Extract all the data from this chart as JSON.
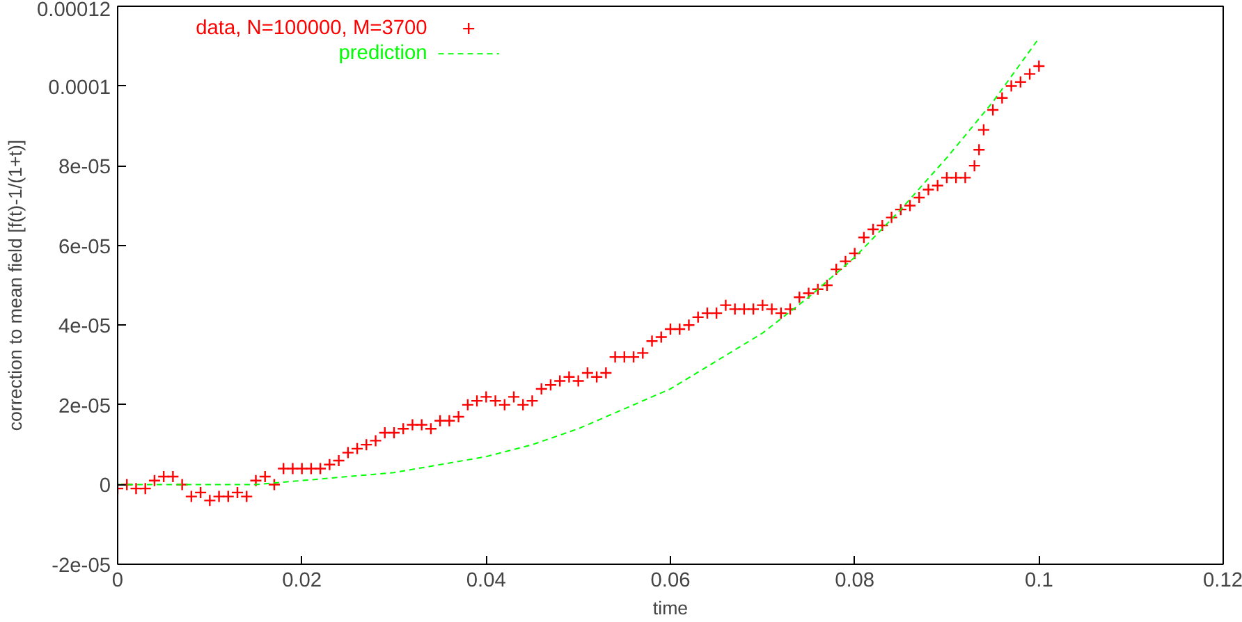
{
  "chart_data": {
    "type": "scatter",
    "xlabel": "time",
    "ylabel": "correction to mean field [f(t)-1/(1+t)]",
    "xlim": [
      0,
      0.12
    ],
    "xticks": [
      0,
      0.02,
      0.04,
      0.06,
      0.08,
      0.1,
      0.12
    ],
    "ylim": [
      -2e-05,
      0.00012
    ],
    "yticks": [
      {
        "value": -2e-05,
        "label": "-2e-05"
      },
      0,
      {
        "value": 2e-05,
        "label": "2e-05"
      },
      {
        "value": 4e-05,
        "label": "4e-05"
      },
      {
        "value": 6e-05,
        "label": "6e-05"
      },
      {
        "value": 8e-05,
        "label": "8e-05"
      },
      {
        "value": 0.0001,
        "label": "0.0001"
      },
      {
        "value": 0.00012,
        "label": "0.00012"
      }
    ],
    "grid": false,
    "legend": "top",
    "series": [
      {
        "name": "data, N=100000, M=3700",
        "marker": "cross",
        "color": "#ff0000",
        "x": [
          0,
          0.001,
          0.002,
          0.003,
          0.004,
          0.005,
          0.006,
          0.007,
          0.008,
          0.009,
          0.01,
          0.011,
          0.012,
          0.013,
          0.014,
          0.015,
          0.016,
          0.017,
          0.018,
          0.019,
          0.02,
          0.021,
          0.022,
          0.023,
          0.024,
          0.025,
          0.026,
          0.027,
          0.028,
          0.029,
          0.03,
          0.031,
          0.032,
          0.033,
          0.034,
          0.035,
          0.036,
          0.037,
          0.038,
          0.039,
          0.04,
          0.041,
          0.042,
          0.043,
          0.044,
          0.045,
          0.046,
          0.047,
          0.048,
          0.049,
          0.05,
          0.051,
          0.052,
          0.053,
          0.054,
          0.055,
          0.056,
          0.057,
          0.058,
          0.059,
          0.06,
          0.061,
          0.062,
          0.063,
          0.064,
          0.065,
          0.066,
          0.067,
          0.068,
          0.069,
          0.07,
          0.071,
          0.072,
          0.073,
          0.074,
          0.075,
          0.076,
          0.077,
          0.078,
          0.079,
          0.08,
          0.081,
          0.082,
          0.083,
          0.084,
          0.085,
          0.086,
          0.087,
          0.088,
          0.089,
          0.09,
          0.091,
          0.092,
          0.093,
          0.0935,
          0.094,
          0.095,
          0.096,
          0.097,
          0.098,
          0.099,
          0.1
        ],
        "values": [
          -1e-06,
          0,
          -1e-06,
          -1e-06,
          1e-06,
          2e-06,
          2e-06,
          0,
          -3e-06,
          -2e-06,
          -4e-06,
          -3e-06,
          -3e-06,
          -2e-06,
          -3e-06,
          1e-06,
          2e-06,
          0,
          4e-06,
          4e-06,
          4e-06,
          4e-06,
          4e-06,
          5e-06,
          6e-06,
          8e-06,
          9e-06,
          1e-05,
          1.1e-05,
          1.3e-05,
          1.3e-05,
          1.4e-05,
          1.5e-05,
          1.5e-05,
          1.4e-05,
          1.6e-05,
          1.6e-05,
          1.7e-05,
          2e-05,
          2.1e-05,
          2.2e-05,
          2.1e-05,
          2e-05,
          2.2e-05,
          2e-05,
          2.1e-05,
          2.4e-05,
          2.5e-05,
          2.6e-05,
          2.7e-05,
          2.6e-05,
          2.8e-05,
          2.7e-05,
          2.8e-05,
          3.2e-05,
          3.2e-05,
          3.2e-05,
          3.3e-05,
          3.6e-05,
          3.7e-05,
          3.9e-05,
          3.9e-05,
          4e-05,
          4.2e-05,
          4.3e-05,
          4.3e-05,
          4.5e-05,
          4.4e-05,
          4.4e-05,
          4.4e-05,
          4.5e-05,
          4.4e-05,
          4.3e-05,
          4.4e-05,
          4.7e-05,
          4.8e-05,
          4.9e-05,
          5e-05,
          5.4e-05,
          5.6e-05,
          5.8e-05,
          6.2e-05,
          6.4e-05,
          6.5e-05,
          6.7e-05,
          6.9e-05,
          7e-05,
          7.2e-05,
          7.4e-05,
          7.5e-05,
          7.7e-05,
          7.7e-05,
          7.7e-05,
          8e-05,
          8.4e-05,
          8.9e-05,
          9.4e-05,
          9.7e-05,
          0.0001,
          0.000101,
          0.000103,
          0.000105
        ]
      },
      {
        "name": "prediction",
        "type": "line",
        "line_style": "dashed",
        "color": "#00ff00",
        "x": [
          0,
          0.005,
          0.01,
          0.015,
          0.02,
          0.025,
          0.03,
          0.035,
          0.04,
          0.045,
          0.05,
          0.055,
          0.06,
          0.065,
          0.07,
          0.075,
          0.08,
          0.085,
          0.09,
          0.095,
          0.1
        ],
        "values": [
          0,
          0,
          0,
          0,
          1e-06,
          2e-06,
          3e-06,
          5e-06,
          7e-06,
          1e-05,
          1.4e-05,
          1.9e-05,
          2.4e-05,
          3.1e-05,
          3.8e-05,
          4.7e-05,
          5.7e-05,
          6.9e-05,
          8.2e-05,
          9.6e-05,
          0.000112
        ]
      }
    ]
  }
}
